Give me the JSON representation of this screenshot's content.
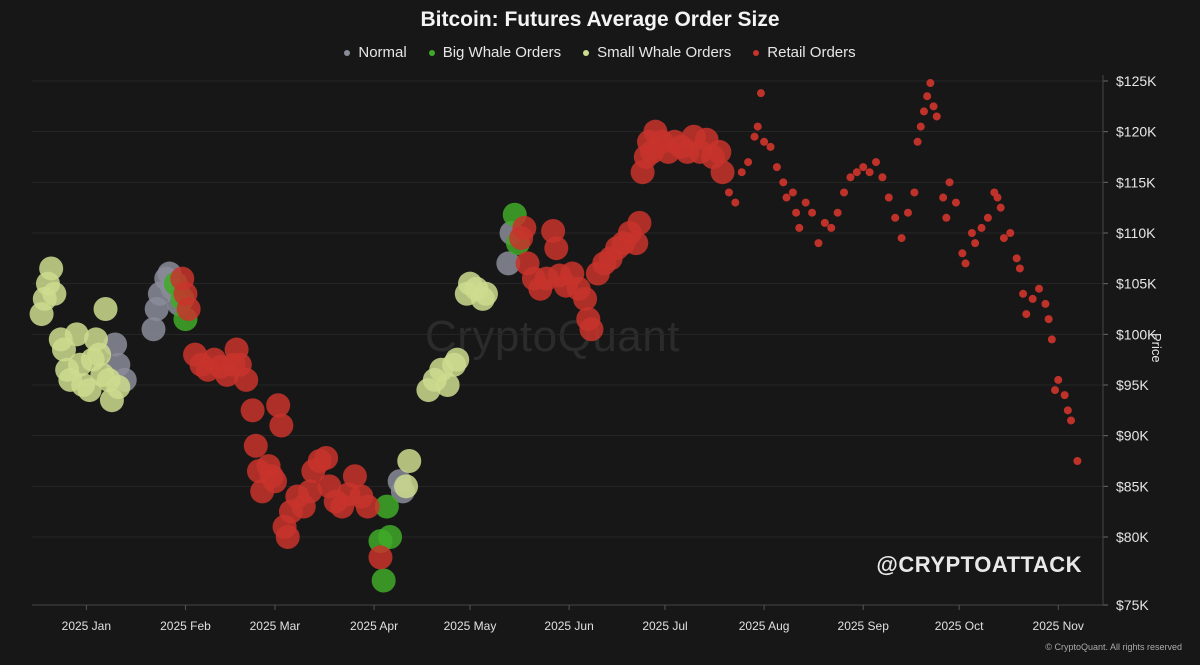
{
  "chart_data": {
    "type": "scatter",
    "title": "Bitcoin: Futures Average Order Size",
    "ylabel": "Price",
    "ylim": [
      75000,
      126000
    ],
    "y_ticks": [
      75000,
      80000,
      85000,
      90000,
      95000,
      100000,
      105000,
      110000,
      115000,
      120000,
      125000
    ],
    "y_tick_labels": [
      "$75K",
      "$80K",
      "$85K",
      "$90K",
      "$95K",
      "$100K",
      "$105K",
      "$110K",
      "$115K",
      "$120K",
      "$125K"
    ],
    "x_ticks": [
      "2025-01-15",
      "2025-02-15",
      "2025-03-15",
      "2025-04-15",
      "2025-05-15",
      "2025-06-15",
      "2025-07-15",
      "2025-08-15",
      "2025-09-15",
      "2025-10-15",
      "2025-11-15"
    ],
    "x_tick_labels": [
      "2025 Jan",
      "2025 Feb",
      "2025 Mar",
      "2025 Apr",
      "2025 May",
      "2025 Jun",
      "2025 Jul",
      "2025 Aug",
      "2025 Sep",
      "2025 Oct",
      "2025 Nov"
    ],
    "xlim": [
      "2024-12-29",
      "2025-11-29"
    ],
    "legend_position": "top-center",
    "grid": true,
    "series": [
      {
        "name": "Normal",
        "color": "#8a8c99",
        "size": "large",
        "points": [
          [
            "2025-01-24",
            99000
          ],
          [
            "2025-01-25",
            97000
          ],
          [
            "2025-01-27",
            95500
          ],
          [
            "2025-02-05",
            100500
          ],
          [
            "2025-02-06",
            102500
          ],
          [
            "2025-02-07",
            104000
          ],
          [
            "2025-02-09",
            105500
          ],
          [
            "2025-02-10",
            106000
          ],
          [
            "2025-02-11",
            104500
          ],
          [
            "2025-02-13",
            103000
          ],
          [
            "2025-04-23",
            85500
          ],
          [
            "2025-04-24",
            84500
          ],
          [
            "2025-05-27",
            107000
          ],
          [
            "2025-05-28",
            110000
          ]
        ]
      },
      {
        "name": "Big Whale Orders",
        "color": "#3faa28",
        "size": "large",
        "points": [
          [
            "2025-02-12",
            105000
          ],
          [
            "2025-02-14",
            103500
          ],
          [
            "2025-02-15",
            101500
          ],
          [
            "2025-04-19",
            83000
          ],
          [
            "2025-04-17",
            79700
          ],
          [
            "2025-04-20",
            80000
          ],
          [
            "2025-04-18",
            76800
          ],
          [
            "2025-05-29",
            111800
          ],
          [
            "2025-05-30",
            109000
          ]
        ]
      },
      {
        "name": "Small Whale Orders",
        "color": "#ccdc8e",
        "size": "large",
        "points": [
          [
            "2025-01-01",
            102000
          ],
          [
            "2025-01-02",
            103500
          ],
          [
            "2025-01-03",
            105000
          ],
          [
            "2025-01-04",
            106500
          ],
          [
            "2025-01-05",
            104000
          ],
          [
            "2025-01-07",
            99500
          ],
          [
            "2025-01-08",
            98500
          ],
          [
            "2025-01-09",
            96500
          ],
          [
            "2025-01-10",
            95500
          ],
          [
            "2025-01-12",
            100000
          ],
          [
            "2025-01-13",
            97000
          ],
          [
            "2025-01-14",
            95000
          ],
          [
            "2025-01-16",
            94500
          ],
          [
            "2025-01-17",
            97500
          ],
          [
            "2025-01-18",
            99500
          ],
          [
            "2025-01-19",
            98000
          ],
          [
            "2025-01-20",
            96000
          ],
          [
            "2025-01-21",
            102500
          ],
          [
            "2025-01-22",
            95500
          ],
          [
            "2025-01-23",
            93500
          ],
          [
            "2025-01-25",
            94800
          ],
          [
            "2025-04-25",
            85000
          ],
          [
            "2025-04-26",
            87500
          ],
          [
            "2025-05-02",
            94500
          ],
          [
            "2025-05-04",
            95500
          ],
          [
            "2025-05-06",
            96500
          ],
          [
            "2025-05-08",
            95000
          ],
          [
            "2025-05-10",
            97000
          ],
          [
            "2025-05-11",
            97500
          ],
          [
            "2025-05-14",
            104000
          ],
          [
            "2025-05-15",
            105000
          ],
          [
            "2025-05-17",
            104500
          ],
          [
            "2025-05-19",
            103500
          ],
          [
            "2025-05-20",
            104000
          ]
        ]
      },
      {
        "name": "Retail Orders",
        "color": "#c8342b",
        "size": "large",
        "points": [
          [
            "2025-02-14",
            105500
          ],
          [
            "2025-02-15",
            104000
          ],
          [
            "2025-02-16",
            102500
          ],
          [
            "2025-02-18",
            98000
          ],
          [
            "2025-02-20",
            97000
          ],
          [
            "2025-02-22",
            96500
          ],
          [
            "2025-02-24",
            97500
          ],
          [
            "2025-02-26",
            96800
          ],
          [
            "2025-02-28",
            96000
          ],
          [
            "2025-03-02",
            97000
          ],
          [
            "2025-03-03",
            98500
          ],
          [
            "2025-03-04",
            97000
          ],
          [
            "2025-03-06",
            95500
          ],
          [
            "2025-03-08",
            92500
          ],
          [
            "2025-03-09",
            89000
          ],
          [
            "2025-03-10",
            86500
          ],
          [
            "2025-03-11",
            84500
          ],
          [
            "2025-03-13",
            87000
          ],
          [
            "2025-03-14",
            86000
          ],
          [
            "2025-03-15",
            85500
          ],
          [
            "2025-03-16",
            93000
          ],
          [
            "2025-03-17",
            91000
          ],
          [
            "2025-03-18",
            81000
          ],
          [
            "2025-03-19",
            80000
          ],
          [
            "2025-03-20",
            82500
          ],
          [
            "2025-03-22",
            84000
          ],
          [
            "2025-03-24",
            83000
          ],
          [
            "2025-03-26",
            84500
          ],
          [
            "2025-03-27",
            86500
          ],
          [
            "2025-03-29",
            87500
          ],
          [
            "2025-03-31",
            87800
          ],
          [
            "2025-04-01",
            85000
          ],
          [
            "2025-04-03",
            83500
          ],
          [
            "2025-04-05",
            83000
          ],
          [
            "2025-04-07",
            84200
          ],
          [
            "2025-04-09",
            86000
          ],
          [
            "2025-04-11",
            84000
          ],
          [
            "2025-04-13",
            83000
          ],
          [
            "2025-04-17",
            78500
          ],
          [
            "2025-05-31",
            109500
          ],
          [
            "2025-06-01",
            110500
          ],
          [
            "2025-06-02",
            107000
          ],
          [
            "2025-06-04",
            105500
          ],
          [
            "2025-06-06",
            104500
          ],
          [
            "2025-06-08",
            105500
          ],
          [
            "2025-06-10",
            110200
          ],
          [
            "2025-06-11",
            108500
          ],
          [
            "2025-06-12",
            105800
          ],
          [
            "2025-06-14",
            104800
          ],
          [
            "2025-06-16",
            106000
          ],
          [
            "2025-06-18",
            104500
          ],
          [
            "2025-06-20",
            103500
          ],
          [
            "2025-06-21",
            101500
          ],
          [
            "2025-06-22",
            100500
          ],
          [
            "2025-06-24",
            106000
          ],
          [
            "2025-06-26",
            107000
          ],
          [
            "2025-06-28",
            107500
          ],
          [
            "2025-06-30",
            108500
          ],
          [
            "2025-07-02",
            109000
          ],
          [
            "2025-07-04",
            110000
          ],
          [
            "2025-07-06",
            109000
          ],
          [
            "2025-07-07",
            111000
          ],
          [
            "2025-07-08",
            116000
          ],
          [
            "2025-07-09",
            117500
          ],
          [
            "2025-07-10",
            119000
          ],
          [
            "2025-07-11",
            118000
          ],
          [
            "2025-07-12",
            120000
          ],
          [
            "2025-07-14",
            119000
          ],
          [
            "2025-07-16",
            118000
          ],
          [
            "2025-07-18",
            119000
          ],
          [
            "2025-07-20",
            118500
          ],
          [
            "2025-07-22",
            118000
          ],
          [
            "2025-07-24",
            119500
          ],
          [
            "2025-07-26",
            118000
          ],
          [
            "2025-07-28",
            119200
          ],
          [
            "2025-07-30",
            117500
          ],
          [
            "2025-08-01",
            118000
          ],
          [
            "2025-08-02",
            116000
          ]
        ]
      },
      {
        "name": "Retail Orders",
        "color": "#c8342b",
        "size": "small",
        "points": [
          [
            "2025-08-04",
            114000
          ],
          [
            "2025-08-06",
            113000
          ],
          [
            "2025-08-08",
            116000
          ],
          [
            "2025-08-10",
            117000
          ],
          [
            "2025-08-12",
            119500
          ],
          [
            "2025-08-13",
            120500
          ],
          [
            "2025-08-14",
            123800
          ],
          [
            "2025-08-15",
            119000
          ],
          [
            "2025-08-17",
            118500
          ],
          [
            "2025-08-19",
            116500
          ],
          [
            "2025-08-21",
            115000
          ],
          [
            "2025-08-22",
            113500
          ],
          [
            "2025-08-24",
            114000
          ],
          [
            "2025-08-25",
            112000
          ],
          [
            "2025-08-26",
            110500
          ],
          [
            "2025-08-28",
            113000
          ],
          [
            "2025-08-30",
            112000
          ],
          [
            "2025-09-01",
            109000
          ],
          [
            "2025-09-03",
            111000
          ],
          [
            "2025-09-05",
            110500
          ],
          [
            "2025-09-07",
            112000
          ],
          [
            "2025-09-09",
            114000
          ],
          [
            "2025-09-11",
            115500
          ],
          [
            "2025-09-13",
            116000
          ],
          [
            "2025-09-15",
            116500
          ],
          [
            "2025-09-17",
            116000
          ],
          [
            "2025-09-19",
            117000
          ],
          [
            "2025-09-21",
            115500
          ],
          [
            "2025-09-23",
            113500
          ],
          [
            "2025-09-25",
            111500
          ],
          [
            "2025-09-27",
            109500
          ],
          [
            "2025-09-29",
            112000
          ],
          [
            "2025-10-01",
            114000
          ],
          [
            "2025-10-02",
            119000
          ],
          [
            "2025-10-03",
            120500
          ],
          [
            "2025-10-04",
            122000
          ],
          [
            "2025-10-05",
            123500
          ],
          [
            "2025-10-06",
            124800
          ],
          [
            "2025-10-07",
            122500
          ],
          [
            "2025-10-08",
            121500
          ],
          [
            "2025-10-10",
            113500
          ],
          [
            "2025-10-11",
            111500
          ],
          [
            "2025-10-12",
            115000
          ],
          [
            "2025-10-14",
            113000
          ],
          [
            "2025-10-16",
            108000
          ],
          [
            "2025-10-17",
            107000
          ],
          [
            "2025-10-19",
            110000
          ],
          [
            "2025-10-20",
            109000
          ],
          [
            "2025-10-22",
            110500
          ],
          [
            "2025-10-24",
            111500
          ],
          [
            "2025-10-26",
            114000
          ],
          [
            "2025-10-27",
            113500
          ],
          [
            "2025-10-28",
            112500
          ],
          [
            "2025-10-29",
            109500
          ],
          [
            "2025-10-31",
            110000
          ],
          [
            "2025-11-02",
            107500
          ],
          [
            "2025-11-03",
            106500
          ],
          [
            "2025-11-04",
            104000
          ],
          [
            "2025-11-05",
            102000
          ],
          [
            "2025-11-07",
            103500
          ],
          [
            "2025-11-09",
            104500
          ],
          [
            "2025-11-11",
            103000
          ],
          [
            "2025-11-12",
            101500
          ],
          [
            "2025-11-13",
            99500
          ],
          [
            "2025-11-14",
            94500
          ],
          [
            "2025-11-15",
            95500
          ],
          [
            "2025-11-17",
            94000
          ],
          [
            "2025-11-18",
            92500
          ],
          [
            "2025-11-19",
            91500
          ],
          [
            "2025-11-21",
            87500
          ]
        ]
      }
    ]
  },
  "watermark": "CryptoQuant",
  "handle": "@CRYPTOATTACK",
  "copyright": "© CryptoQuant. All rights reserved"
}
